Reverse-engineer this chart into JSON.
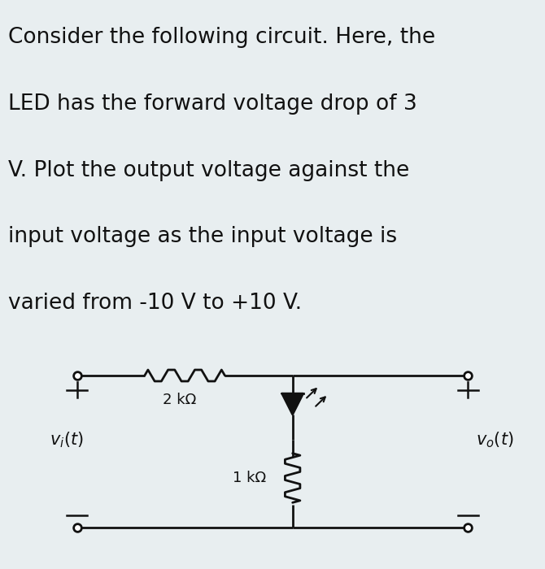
{
  "background_color": "#e8eef0",
  "text_color": "#111111",
  "title_lines": [
    "Consider the following circuit. Here, the",
    "LED has the forward voltage drop of 3",
    "V. Plot the output voltage against the",
    "input voltage as the input voltage is",
    "varied from -10 V to +10 V."
  ],
  "title_fontsize": 19,
  "circuit_bg": "#cfdde2",
  "label_vi": "$v_i(t)$",
  "label_vo": "$v_o(t)$",
  "label_r1": "2 kΩ",
  "label_r2": "1 kΩ",
  "wire_color": "#111111",
  "wire_lw": 2.0
}
